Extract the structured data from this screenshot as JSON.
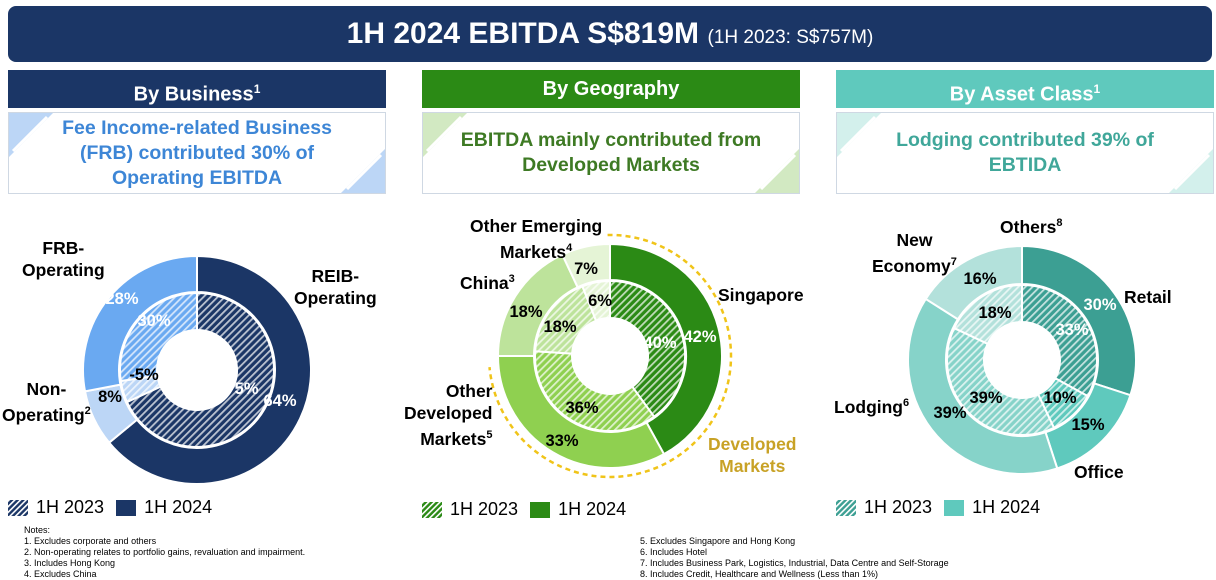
{
  "banner": {
    "title": "1H 2024 EBITDA S$819M",
    "subtitle": "(1H 2023: S$757M)"
  },
  "columns": [
    {
      "heading": "By Business",
      "heading_sup": "1",
      "callout": "Fee Income-related Business (FRB) contributed 30% of Operating EBITDA",
      "head_color": "#1b3666",
      "callout_color": "#3d86d6",
      "corner_color": "#bcd6f6"
    },
    {
      "heading": "By Geography",
      "heading_sup": "",
      "callout": "EBITDA mainly contributed from Developed Markets",
      "head_color": "#2b8a15",
      "callout_color": "#3e7a24",
      "corner_color": "#d2e9c2"
    },
    {
      "heading": "By Asset Class",
      "heading_sup": "1",
      "callout": "Lodging contributed 39% of EBTIDA",
      "head_color": "#5fc9bd",
      "callout_color": "#40a79a",
      "corner_color": "#d3f0ec"
    }
  ],
  "chart_data": [
    {
      "type": "donut",
      "title": "By Business",
      "inner_series": "1H 2023",
      "outer_series": "1H 2024",
      "categories": [
        "REIB-Operating",
        "Non-Operating",
        "FRB-Operating"
      ],
      "series": [
        {
          "name": "1H 2023",
          "values": [
            75,
            -5,
            30
          ]
        },
        {
          "name": "1H 2024",
          "values": [
            64,
            8,
            28
          ]
        }
      ],
      "colors": [
        "#1b3666",
        "#bcd6f6",
        "#6aa9f1"
      ],
      "labels": {
        "frb": {
          "line1": "FRB-",
          "line2": "Operating"
        },
        "reib": {
          "line1": "REIB-",
          "line2": "Operating"
        },
        "nonop": {
          "line1": "Non-",
          "line2": "Operating",
          "sup": "2"
        }
      },
      "legend": [
        {
          "label": "1H 2023"
        },
        {
          "label": "1H 2024"
        }
      ],
      "value_labels": {
        "outer": [
          "64%",
          "8%",
          "28%"
        ],
        "inner": [
          "75%",
          "-5%",
          "30%"
        ]
      }
    },
    {
      "type": "donut",
      "title": "By Geography",
      "inner_series": "1H 2023",
      "outer_series": "1H 2024",
      "categories": [
        "Singapore",
        "Other Developed Markets",
        "China",
        "Other Emerging Markets"
      ],
      "series": [
        {
          "name": "1H 2023",
          "values": [
            40,
            36,
            18,
            6
          ]
        },
        {
          "name": "1H 2024",
          "values": [
            42,
            33,
            18,
            7
          ]
        }
      ],
      "colors": [
        "#2b8a15",
        "#8fd050",
        "#bde39b",
        "#e5f4d6"
      ],
      "labels": {
        "singapore": "Singapore",
        "odm": {
          "line1": "Other",
          "line2": "Developed",
          "line3": "Markets",
          "sup": "5"
        },
        "china": {
          "text": "China",
          "sup": "3"
        },
        "oem": {
          "line1": "Other Emerging",
          "line2": "Markets",
          "sup": "4"
        },
        "developed": {
          "line1": "Developed",
          "line2": "Markets"
        }
      },
      "legend": [
        {
          "label": "1H 2023"
        },
        {
          "label": "1H 2024"
        }
      ],
      "value_labels": {
        "outer": [
          "42%",
          "33%",
          "18%",
          "7%"
        ],
        "inner": [
          "40%",
          "36%",
          "18%",
          "6%"
        ]
      }
    },
    {
      "type": "donut",
      "title": "By Asset Class",
      "inner_series": "1H 2023",
      "outer_series": "1H 2024",
      "categories": [
        "Retail",
        "Office",
        "Lodging",
        "New Economy",
        "Others"
      ],
      "series": [
        {
          "name": "1H 2023",
          "values": [
            33,
            10,
            39,
            18,
            0
          ]
        },
        {
          "name": "1H 2024",
          "values": [
            30,
            15,
            39,
            16,
            0
          ]
        }
      ],
      "colors": [
        "#3c9f93",
        "#5fc9bd",
        "#86d3c9",
        "#b3e1db",
        "#dff3f0"
      ],
      "labels": {
        "retail": "Retail",
        "office": "Office",
        "lodging": {
          "text": "Lodging",
          "sup": "6"
        },
        "neweco": {
          "line1": "New",
          "line2": "Economy",
          "sup": "7"
        },
        "others": {
          "text": "Others",
          "sup": "8"
        }
      },
      "legend": [
        {
          "label": "1H 2023"
        },
        {
          "label": "1H 2024"
        }
      ],
      "value_labels": {
        "outer": [
          "30%",
          "15%",
          "39%",
          "16%"
        ],
        "inner": [
          "33%",
          "10%",
          "39%",
          "18%"
        ]
      }
    }
  ],
  "notes": {
    "title": "Notes:",
    "left": [
      "1.   Excludes corporate and others",
      "2.   Non-operating relates to portfolio gains, revaluation and impairment.",
      "3.   Includes Hong Kong",
      "4.   Excludes China"
    ],
    "right": [
      "5.   Excludes Singapore and Hong Kong",
      "6.   Includes Hotel",
      "7.   Includes Business Park, Logistics, Industrial, Data Centre and Self-Storage",
      "8.   Includes Credit, Healthcare and Wellness (Less than 1%)"
    ]
  }
}
